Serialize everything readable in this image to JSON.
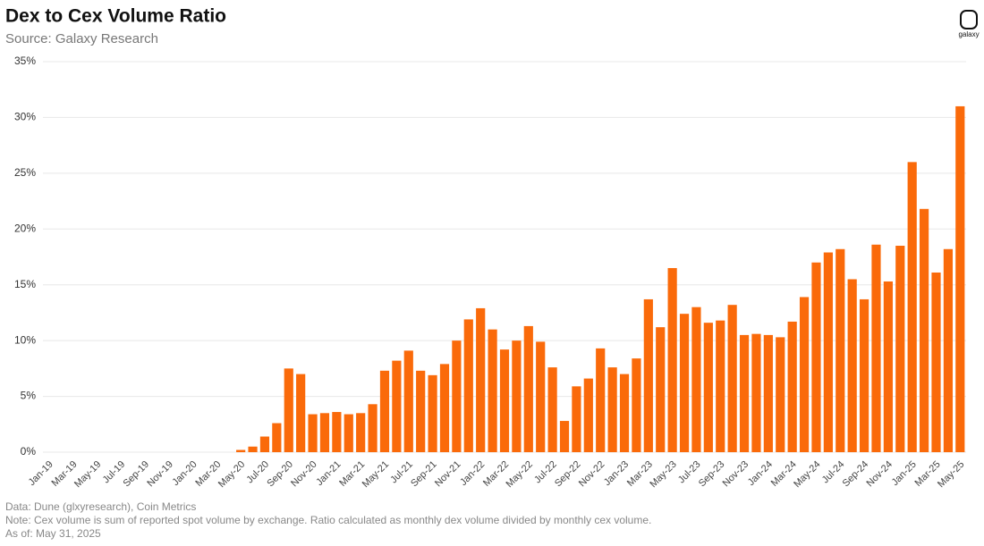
{
  "chart_data": {
    "type": "bar",
    "title": "Dex to Cex Volume Ratio",
    "subtitle": "Source: Galaxy Research",
    "logo": "galaxy",
    "notes": [
      "Data: Dune (glxyresearch), Coin Metrics",
      "Note: Cex volume is sum of reported spot volume by exchange. Ratio calculated as monthly dex volume divided by monthly cex volume.",
      "As of: May 31, 2025"
    ],
    "categories": [
      "Jan-19",
      null,
      "Mar-19",
      null,
      "May-19",
      null,
      "Jul-19",
      null,
      "Sep-19",
      null,
      "Nov-19",
      null,
      "Jan-20",
      null,
      "Mar-20",
      null,
      "May-20",
      null,
      "Jul-20",
      null,
      "Sep-20",
      null,
      "Nov-20",
      null,
      "Jan-21",
      null,
      "Mar-21",
      null,
      "May-21",
      null,
      "Jul-21",
      null,
      "Sep-21",
      null,
      "Nov-21",
      null,
      "Jan-22",
      null,
      "Mar-22",
      null,
      "May-22",
      null,
      "Jul-22",
      null,
      "Sep-22",
      null,
      "Nov-22",
      null,
      "Jan-23",
      null,
      "Mar-23",
      null,
      "May-23",
      null,
      "Jul-23",
      null,
      "Sep-23",
      null,
      "Nov-23",
      null,
      "Jan-24",
      null,
      "Mar-24",
      null,
      "May-24",
      null,
      "Jul-24",
      null,
      "Sep-24",
      null,
      "Nov-24",
      null,
      "Jan-25",
      null,
      "Mar-25",
      null,
      "May-25"
    ],
    "values": [
      0,
      0,
      0,
      0,
      0,
      0,
      0,
      0,
      0,
      0,
      0,
      0,
      0,
      0,
      0,
      0,
      0.2,
      0.5,
      1.4,
      2.6,
      7.5,
      7.0,
      3.4,
      3.5,
      3.6,
      3.4,
      3.5,
      4.3,
      7.3,
      8.2,
      9.1,
      7.3,
      6.9,
      7.9,
      10.0,
      11.9,
      12.9,
      11.0,
      9.2,
      10.0,
      11.3,
      9.9,
      7.6,
      2.8,
      5.9,
      6.6,
      9.3,
      7.6,
      7.0,
      8.4,
      13.7,
      11.2,
      16.5,
      12.4,
      13.0,
      11.6,
      11.8,
      13.2,
      10.5,
      10.6,
      10.5,
      10.3,
      11.7,
      13.9,
      17.0,
      17.9,
      18.2,
      15.5,
      13.7,
      18.6,
      15.3,
      18.5,
      26.0,
      21.8,
      16.1,
      18.2,
      31.0
    ],
    "color": "#fa6a0a",
    "ylim": [
      0,
      35
    ],
    "yticks": [
      {
        "value": 0,
        "label": "0%"
      },
      {
        "value": 5,
        "label": "5%"
      },
      {
        "value": 10,
        "label": "10%"
      },
      {
        "value": 15,
        "label": "15%"
      },
      {
        "value": 20,
        "label": "20%"
      },
      {
        "value": 25,
        "label": "25%"
      },
      {
        "value": 30,
        "label": "30%"
      },
      {
        "value": 35,
        "label": "35%"
      }
    ],
    "grid": true
  }
}
